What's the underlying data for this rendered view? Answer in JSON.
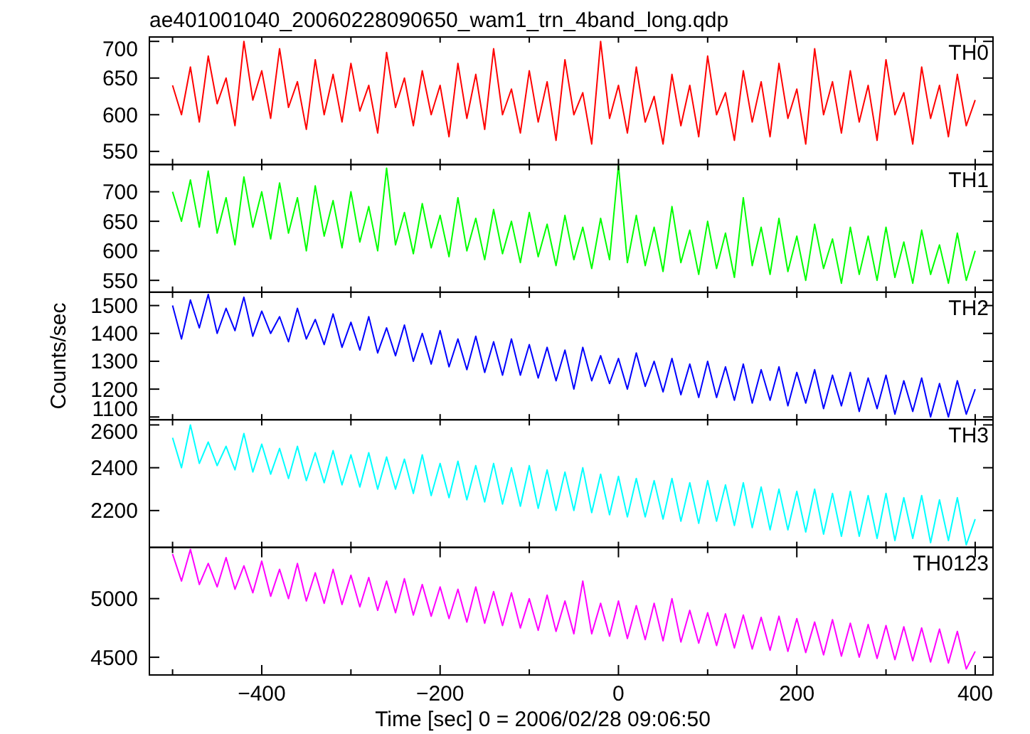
{
  "chart_data": [
    {
      "type": "line",
      "title": "ae401001040_20060228090650_wam1_trn_4band_long.qdp",
      "annotations": [
        "TH0"
      ],
      "tick_labels": "y",
      "xlim": [
        -526,
        420
      ],
      "ylim": [
        532,
        706
      ],
      "yticks": [
        550,
        600,
        650,
        700
      ],
      "xticks": [
        {
          "value": -500,
          "label": null
        },
        {
          "value": -400,
          "label": null
        },
        {
          "value": -300,
          "label": null
        },
        {
          "value": -200,
          "label": null
        },
        {
          "value": -100,
          "label": null
        },
        {
          "value": 0,
          "label": null
        },
        {
          "value": 100,
          "label": null
        },
        {
          "value": 200,
          "label": null
        },
        {
          "value": 300,
          "label": null
        },
        {
          "value": 400,
          "label": null
        }
      ],
      "x": [
        -500,
        -490,
        -480,
        -470,
        -460,
        -450,
        -440,
        -430,
        -420,
        -410,
        -400,
        -390,
        -380,
        -370,
        -360,
        -350,
        -340,
        -330,
        -320,
        -310,
        -300,
        -290,
        -280,
        -270,
        -260,
        -250,
        -240,
        -230,
        -220,
        -210,
        -200,
        -190,
        -180,
        -170,
        -160,
        -150,
        -140,
        -130,
        -120,
        -110,
        -100,
        -90,
        -80,
        -70,
        -60,
        -50,
        -40,
        -30,
        -20,
        -10,
        0,
        10,
        20,
        30,
        40,
        50,
        60,
        70,
        80,
        90,
        100,
        110,
        120,
        130,
        140,
        150,
        160,
        170,
        180,
        190,
        200,
        210,
        220,
        230,
        240,
        250,
        260,
        270,
        280,
        290,
        300,
        310,
        320,
        330,
        340,
        350,
        360,
        370,
        380,
        390,
        400
      ],
      "series": [
        {
          "color": "#ff0000",
          "values": [
            640,
            600,
            665,
            590,
            680,
            615,
            650,
            585,
            700,
            620,
            660,
            595,
            690,
            610,
            645,
            580,
            675,
            600,
            655,
            590,
            670,
            605,
            640,
            575,
            685,
            610,
            650,
            585,
            660,
            600,
            640,
            570,
            670,
            595,
            655,
            580,
            690,
            600,
            635,
            575,
            660,
            590,
            645,
            565,
            675,
            600,
            630,
            560,
            700,
            595,
            640,
            575,
            665,
            590,
            625,
            560,
            655,
            585,
            640,
            570,
            680,
            600,
            630,
            565,
            660,
            590,
            645,
            570,
            670,
            595,
            635,
            560,
            690,
            600,
            645,
            575,
            660,
            590,
            640,
            565,
            675,
            600,
            630,
            560,
            665,
            595,
            640,
            570,
            655,
            585,
            620
          ]
        }
      ]
    },
    {
      "type": "line",
      "annotations": [
        "TH1"
      ],
      "tick_labels": "y",
      "xlim": [
        -526,
        420
      ],
      "ylim": [
        530,
        746
      ],
      "yticks": [
        550,
        600,
        650,
        700
      ],
      "xticks": [
        {
          "value": -500,
          "label": null
        },
        {
          "value": -400,
          "label": null
        },
        {
          "value": -300,
          "label": null
        },
        {
          "value": -200,
          "label": null
        },
        {
          "value": -100,
          "label": null
        },
        {
          "value": 0,
          "label": null
        },
        {
          "value": 100,
          "label": null
        },
        {
          "value": 200,
          "label": null
        },
        {
          "value": 300,
          "label": null
        },
        {
          "value": 400,
          "label": null
        }
      ],
      "x": [
        -500,
        -490,
        -480,
        -470,
        -460,
        -450,
        -440,
        -430,
        -420,
        -410,
        -400,
        -390,
        -380,
        -370,
        -360,
        -350,
        -340,
        -330,
        -320,
        -310,
        -300,
        -290,
        -280,
        -270,
        -260,
        -250,
        -240,
        -230,
        -220,
        -210,
        -200,
        -190,
        -180,
        -170,
        -160,
        -150,
        -140,
        -130,
        -120,
        -110,
        -100,
        -90,
        -80,
        -70,
        -60,
        -50,
        -40,
        -30,
        -20,
        -10,
        0,
        10,
        20,
        30,
        40,
        50,
        60,
        70,
        80,
        90,
        100,
        110,
        120,
        130,
        140,
        150,
        160,
        170,
        180,
        190,
        200,
        210,
        220,
        230,
        240,
        250,
        260,
        270,
        280,
        290,
        300,
        310,
        320,
        330,
        340,
        350,
        360,
        370,
        380,
        390,
        400
      ],
      "series": [
        {
          "color": "#00ff00",
          "values": [
            700,
            650,
            720,
            640,
            735,
            630,
            690,
            610,
            725,
            640,
            700,
            620,
            715,
            630,
            690,
            600,
            710,
            625,
            685,
            605,
            700,
            615,
            675,
            600,
            740,
            610,
            665,
            595,
            680,
            605,
            660,
            590,
            690,
            600,
            655,
            585,
            670,
            595,
            650,
            580,
            665,
            590,
            645,
            575,
            660,
            585,
            640,
            570,
            655,
            585,
            745,
            580,
            660,
            575,
            640,
            565,
            675,
            580,
            635,
            560,
            650,
            570,
            630,
            555,
            690,
            575,
            640,
            560,
            655,
            565,
            625,
            550,
            645,
            570,
            620,
            545,
            640,
            560,
            625,
            550,
            640,
            555,
            615,
            545,
            635,
            560,
            610,
            545,
            630,
            550,
            600
          ]
        }
      ]
    },
    {
      "type": "line",
      "annotations": [
        "TH2"
      ],
      "ylabel": "Counts/sec",
      "tick_labels": "y",
      "xlim": [
        -526,
        420
      ],
      "ylim": [
        1090,
        1548
      ],
      "yticks": [
        1100,
        1200,
        1300,
        1400,
        1500
      ],
      "xticks": [
        {
          "value": -500,
          "label": null
        },
        {
          "value": -400,
          "label": null
        },
        {
          "value": -300,
          "label": null
        },
        {
          "value": -200,
          "label": null
        },
        {
          "value": -100,
          "label": null
        },
        {
          "value": 0,
          "label": null
        },
        {
          "value": 100,
          "label": null
        },
        {
          "value": 200,
          "label": null
        },
        {
          "value": 300,
          "label": null
        },
        {
          "value": 400,
          "label": null
        }
      ],
      "x": [
        -500,
        -490,
        -480,
        -470,
        -460,
        -450,
        -440,
        -430,
        -420,
        -410,
        -400,
        -390,
        -380,
        -370,
        -360,
        -350,
        -340,
        -330,
        -320,
        -310,
        -300,
        -290,
        -280,
        -270,
        -260,
        -250,
        -240,
        -230,
        -220,
        -210,
        -200,
        -190,
        -180,
        -170,
        -160,
        -150,
        -140,
        -130,
        -120,
        -110,
        -100,
        -90,
        -80,
        -70,
        -60,
        -50,
        -40,
        -30,
        -20,
        -10,
        0,
        10,
        20,
        30,
        40,
        50,
        60,
        70,
        80,
        90,
        100,
        110,
        120,
        130,
        140,
        150,
        160,
        170,
        180,
        190,
        200,
        210,
        220,
        230,
        240,
        250,
        260,
        270,
        280,
        290,
        300,
        310,
        320,
        330,
        340,
        350,
        360,
        370,
        380,
        390,
        400
      ],
      "series": [
        {
          "color": "#0000ff",
          "values": [
            1500,
            1380,
            1520,
            1420,
            1540,
            1400,
            1490,
            1410,
            1530,
            1390,
            1480,
            1400,
            1460,
            1370,
            1490,
            1380,
            1450,
            1360,
            1470,
            1350,
            1440,
            1340,
            1460,
            1330,
            1420,
            1320,
            1430,
            1300,
            1400,
            1290,
            1410,
            1280,
            1380,
            1270,
            1390,
            1260,
            1370,
            1250,
            1380,
            1250,
            1360,
            1240,
            1350,
            1230,
            1340,
            1200,
            1350,
            1230,
            1320,
            1220,
            1310,
            1200,
            1330,
            1210,
            1300,
            1190,
            1310,
            1180,
            1290,
            1170,
            1300,
            1170,
            1280,
            1160,
            1290,
            1150,
            1270,
            1160,
            1280,
            1140,
            1260,
            1150,
            1270,
            1130,
            1250,
            1140,
            1260,
            1120,
            1240,
            1130,
            1250,
            1110,
            1230,
            1120,
            1240,
            1100,
            1220,
            1100,
            1230,
            1110,
            1200
          ]
        }
      ]
    },
    {
      "type": "line",
      "annotations": [
        "TH3"
      ],
      "tick_labels": "y",
      "xlim": [
        -526,
        420
      ],
      "ylim": [
        2028,
        2624
      ],
      "yticks": [
        2200,
        2400,
        2600
      ],
      "xticks": [
        {
          "value": -500,
          "label": null
        },
        {
          "value": -400,
          "label": null
        },
        {
          "value": -300,
          "label": null
        },
        {
          "value": -200,
          "label": null
        },
        {
          "value": -100,
          "label": null
        },
        {
          "value": 0,
          "label": null
        },
        {
          "value": 100,
          "label": null
        },
        {
          "value": 200,
          "label": null
        },
        {
          "value": 300,
          "label": null
        },
        {
          "value": 400,
          "label": null
        }
      ],
      "x": [
        -500,
        -490,
        -480,
        -470,
        -460,
        -450,
        -440,
        -430,
        -420,
        -410,
        -400,
        -390,
        -380,
        -370,
        -360,
        -350,
        -340,
        -330,
        -320,
        -310,
        -300,
        -290,
        -280,
        -270,
        -260,
        -250,
        -240,
        -230,
        -220,
        -210,
        -200,
        -190,
        -180,
        -170,
        -160,
        -150,
        -140,
        -130,
        -120,
        -110,
        -100,
        -90,
        -80,
        -70,
        -60,
        -50,
        -40,
        -30,
        -20,
        -10,
        0,
        10,
        20,
        30,
        40,
        50,
        60,
        70,
        80,
        90,
        100,
        110,
        120,
        130,
        140,
        150,
        160,
        170,
        180,
        190,
        200,
        210,
        220,
        230,
        240,
        250,
        260,
        270,
        280,
        290,
        300,
        310,
        320,
        330,
        340,
        350,
        360,
        370,
        380,
        390,
        400
      ],
      "series": [
        {
          "color": "#00ffff",
          "values": [
            2540,
            2400,
            2600,
            2420,
            2520,
            2410,
            2500,
            2390,
            2560,
            2380,
            2510,
            2370,
            2490,
            2350,
            2500,
            2340,
            2470,
            2330,
            2480,
            2320,
            2460,
            2310,
            2470,
            2300,
            2450,
            2300,
            2440,
            2280,
            2460,
            2270,
            2420,
            2260,
            2430,
            2250,
            2410,
            2240,
            2420,
            2230,
            2400,
            2220,
            2410,
            2210,
            2390,
            2200,
            2380,
            2200,
            2400,
            2190,
            2370,
            2180,
            2360,
            2170,
            2350,
            2170,
            2340,
            2160,
            2350,
            2150,
            2330,
            2140,
            2340,
            2150,
            2320,
            2130,
            2330,
            2120,
            2310,
            2110,
            2300,
            2110,
            2290,
            2100,
            2300,
            2090,
            2280,
            2080,
            2290,
            2080,
            2270,
            2070,
            2280,
            2060,
            2260,
            2070,
            2270,
            2050,
            2250,
            2060,
            2260,
            2040,
            2160
          ]
        }
      ]
    },
    {
      "type": "line",
      "annotations": [
        "TH0123"
      ],
      "xlabel": "Time [sec] 0 = 2006/02/28 09:06:50",
      "xlim": [
        -526,
        420
      ],
      "ylim": [
        4349,
        5437
      ],
      "yticks": [
        4500,
        5000
      ],
      "xticks": [
        {
          "value": -500,
          "label": null
        },
        {
          "value": -400,
          "label": "−400"
        },
        {
          "value": -300,
          "label": null
        },
        {
          "value": -200,
          "label": "−200"
        },
        {
          "value": -100,
          "label": null
        },
        0,
        {
          "value": 100,
          "label": null
        },
        200,
        {
          "value": 300,
          "label": null
        },
        400
      ],
      "x": [
        -500,
        -490,
        -480,
        -470,
        -460,
        -450,
        -440,
        -430,
        -420,
        -410,
        -400,
        -390,
        -380,
        -370,
        -360,
        -350,
        -340,
        -330,
        -320,
        -310,
        -300,
        -290,
        -280,
        -270,
        -260,
        -250,
        -240,
        -230,
        -220,
        -210,
        -200,
        -190,
        -180,
        -170,
        -160,
        -150,
        -140,
        -130,
        -120,
        -110,
        -100,
        -90,
        -80,
        -70,
        -60,
        -50,
        -40,
        -30,
        -20,
        -10,
        0,
        10,
        20,
        30,
        40,
        50,
        60,
        70,
        80,
        90,
        100,
        110,
        120,
        130,
        140,
        150,
        160,
        170,
        180,
        190,
        200,
        210,
        220,
        230,
        240,
        250,
        260,
        270,
        280,
        290,
        300,
        310,
        320,
        330,
        340,
        350,
        360,
        370,
        380,
        390,
        400
      ],
      "series": [
        {
          "color": "#ff00ff",
          "values": [
            5380,
            5150,
            5420,
            5120,
            5300,
            5100,
            5350,
            5080,
            5280,
            5050,
            5320,
            5020,
            5250,
            5000,
            5300,
            4980,
            5220,
            4960,
            5250,
            4950,
            5200,
            4930,
            5180,
            4900,
            5150,
            4880,
            5170,
            4860,
            5120,
            4850,
            5100,
            4830,
            5080,
            4800,
            5100,
            4790,
            5060,
            4770,
            5050,
            4750,
            5000,
            4730,
            5030,
            4720,
            4980,
            4700,
            5150,
            4700,
            4960,
            4680,
            4980,
            4660,
            4940,
            4650,
            4960,
            4640,
            5000,
            4630,
            4900,
            4620,
            4880,
            4600,
            4870,
            4580,
            4860,
            4570,
            4840,
            4560,
            4850,
            4550,
            4830,
            4540,
            4800,
            4520,
            4820,
            4510,
            4790,
            4500,
            4780,
            4490,
            4770,
            4480,
            4760,
            4470,
            4750,
            4460,
            4740,
            4450,
            4720,
            4400,
            4550
          ]
        }
      ]
    }
  ]
}
